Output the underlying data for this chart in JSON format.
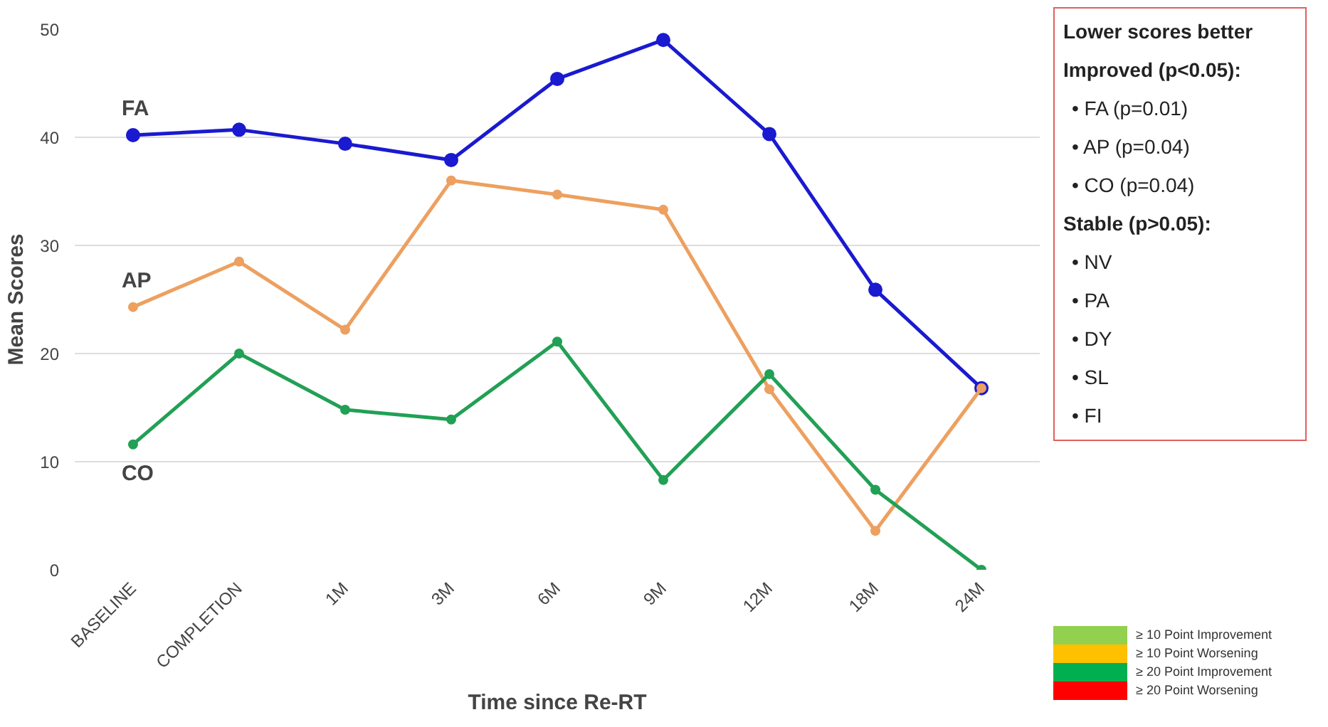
{
  "chart_data": {
    "type": "line",
    "xlabel": "Time since Re-RT",
    "ylabel": "Mean Scores",
    "categories": [
      "BASELINE",
      "COMPLETION",
      "1M",
      "3M",
      "6M",
      "9M",
      "12M",
      "18M",
      "24M"
    ],
    "series": [
      {
        "name": "FA",
        "color": "#1a1ad0",
        "values": [
          40.2,
          40.7,
          39.4,
          37.9,
          45.4,
          49.0,
          40.3,
          25.9,
          16.8
        ]
      },
      {
        "name": "AP",
        "color": "#eda060",
        "values": [
          24.3,
          28.5,
          22.2,
          36.0,
          34.7,
          33.3,
          16.7,
          3.6,
          16.8
        ]
      },
      {
        "name": "CO",
        "color": "#22a055",
        "values": [
          11.6,
          20.0,
          14.8,
          13.9,
          21.1,
          8.3,
          18.1,
          7.4,
          0.0
        ]
      }
    ],
    "ylim": [
      0,
      50
    ],
    "yticks": [
      0,
      10,
      20,
      30,
      40,
      50
    ],
    "grid": "y",
    "legend": false,
    "marker": "circle",
    "line_style": "solid",
    "annotations": [
      "Lower scores better",
      "Improved (p<0.05):",
      "• FA (p=0.01)",
      "• AP (p=0.04)",
      "• CO (p=0.04)",
      "Stable (p>0.05):",
      "• NV",
      "• PA",
      "• DY",
      "• SL",
      "• FI",
      "≥ 10 Point Improvement",
      "≥ 10 Point Worsening",
      "≥ 20 Point Improvement",
      "≥ 20 Point Worsening"
    ]
  }
}
